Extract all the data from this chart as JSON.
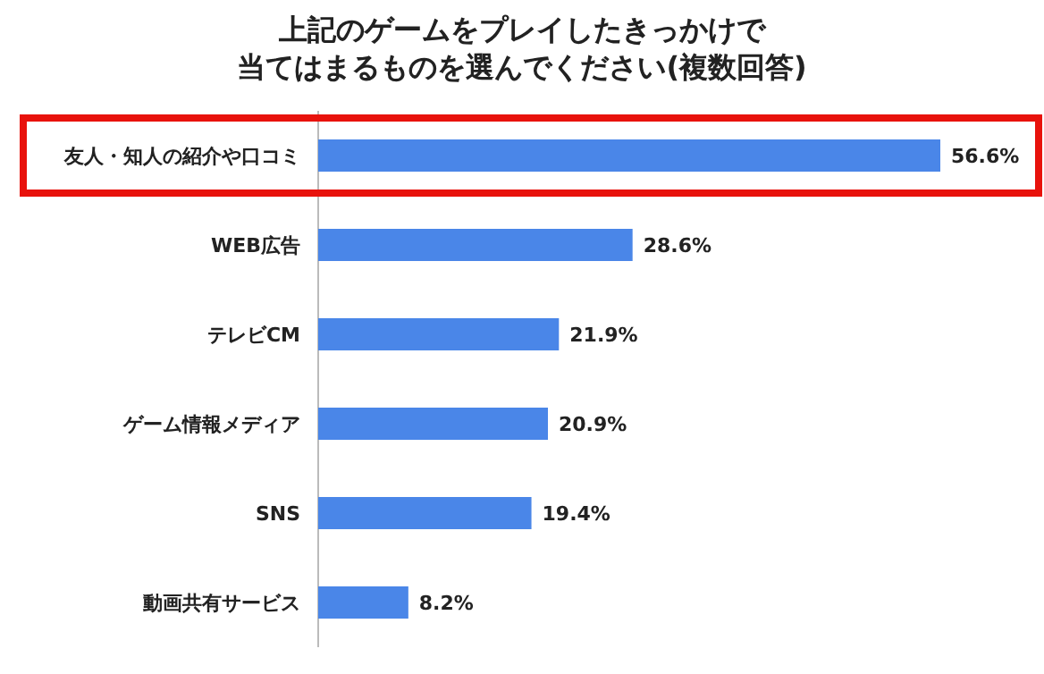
{
  "chart_data": {
    "type": "bar",
    "orientation": "horizontal",
    "title": "上記のゲームをプレイしたきっかけで",
    "subtitle": "当てはまるものを選んでください(複数回答)",
    "categories": [
      "友人・知人の紹介や口コミ",
      "WEB広告",
      "テレビCM",
      "ゲーム情報メディア",
      "SNS",
      "動画共有サービス"
    ],
    "values": [
      56.6,
      28.6,
      21.9,
      20.9,
      19.4,
      8.2
    ],
    "color": "#4a86e8",
    "value_labels": [
      "56.6%",
      "28.6%",
      "21.9%",
      "20.9%",
      "19.4%",
      "8.2%"
    ]
  }
}
